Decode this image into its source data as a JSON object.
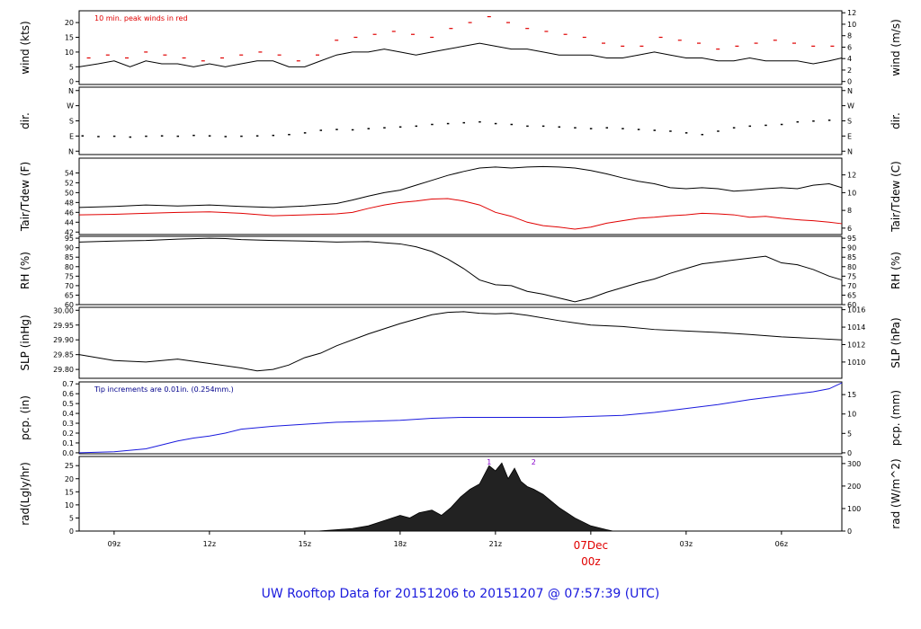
{
  "footer_title": "UW Rooftop Data for 20151206  to  20151207 @ 07:57:39  (UTC)",
  "colors": {
    "black": "#000000",
    "red": "#e00000",
    "blue": "#1a1add",
    "purple": "#8800cc",
    "note_blue": "#00008b"
  },
  "x_axis": {
    "ticks": [
      {
        "label": "09z",
        "t": 9
      },
      {
        "label": "12z",
        "t": 12
      },
      {
        "label": "15z",
        "t": 15
      },
      {
        "label": "18z",
        "t": 18
      },
      {
        "label": "21z",
        "t": 21
      },
      {
        "label": "03z",
        "t": 27
      },
      {
        "label": "06z",
        "t": 30
      }
    ],
    "date_label": "07Dec",
    "date_hour": "00z",
    "date_t": 24,
    "range": [
      7.9,
      31.9
    ]
  },
  "chart_data": [
    {
      "id": "wind",
      "type": "line",
      "ylabel_left": "wind (kts)",
      "ylabel_right": "wind (m/s)",
      "note": "10 min. peak winds in red",
      "ylim": [
        -1,
        24
      ],
      "yticks_left": [
        "0",
        "5",
        "10",
        "15",
        "20"
      ],
      "yticks_left_values": [
        0,
        5,
        10,
        15,
        20
      ],
      "yticks_right": [
        "0",
        "2",
        "4",
        "6",
        "8",
        "10",
        "12"
      ],
      "yticks_right_values": [
        0,
        3.89,
        7.78,
        11.66,
        15.55,
        19.44,
        23.33
      ],
      "series": [
        {
          "color": "black",
          "x": [
            7.9,
            8.5,
            9.0,
            9.5,
            10.0,
            10.5,
            11.0,
            11.5,
            12.0,
            12.5,
            13.0,
            13.5,
            14.0,
            14.5,
            15.0,
            15.5,
            16.0,
            16.5,
            17.0,
            17.5,
            18.0,
            18.5,
            19.0,
            19.5,
            20.0,
            20.5,
            21.0,
            21.5,
            22.0,
            22.5,
            23.0,
            23.5,
            24.0,
            24.5,
            25.0,
            25.5,
            26.0,
            26.5,
            27.0,
            27.5,
            28.0,
            28.5,
            29.0,
            29.5,
            30.0,
            30.5,
            31.0,
            31.5,
            31.9
          ],
          "y": [
            5,
            6,
            7,
            5,
            7,
            6,
            6,
            5,
            6,
            5,
            6,
            7,
            7,
            5,
            5,
            7,
            9,
            10,
            10,
            11,
            10,
            9,
            10,
            11,
            12,
            13,
            12,
            11,
            11,
            10,
            9,
            9,
            9,
            8,
            8,
            9,
            10,
            9,
            8,
            8,
            7,
            7,
            8,
            7,
            7,
            7,
            6,
            7,
            8
          ]
        },
        {
          "name": "10 min. peak winds",
          "color": "red",
          "style": "dash",
          "x": [
            8.2,
            8.8,
            9.4,
            10.0,
            10.6,
            11.2,
            11.8,
            12.4,
            13.0,
            13.6,
            14.2,
            14.8,
            15.4,
            16.0,
            16.6,
            17.2,
            17.8,
            18.4,
            19.0,
            19.6,
            20.2,
            20.8,
            21.4,
            22.0,
            22.6,
            23.2,
            23.8,
            24.4,
            25.0,
            25.6,
            26.2,
            26.8,
            27.4,
            28.0,
            28.6,
            29.2,
            29.8,
            30.4,
            31.0,
            31.6
          ],
          "y": [
            8,
            9,
            8,
            10,
            9,
            8,
            7,
            8,
            9,
            10,
            9,
            7,
            9,
            14,
            15,
            16,
            17,
            16,
            15,
            18,
            20,
            22,
            20,
            18,
            17,
            16,
            15,
            13,
            12,
            12,
            15,
            14,
            13,
            11,
            12,
            13,
            14,
            13,
            12,
            12
          ]
        }
      ]
    },
    {
      "id": "dir",
      "type": "scatter",
      "ylabel_left": "dir.",
      "ylabel_right": "dir.",
      "ylim": [
        -20,
        380
      ],
      "yticks_left": [
        "N",
        "E",
        "S",
        "W",
        "N"
      ],
      "yticks_left_values": [
        0,
        90,
        180,
        270,
        360
      ],
      "yticks_right": [
        "N",
        "E",
        "S",
        "W",
        "N"
      ],
      "yticks_right_values": [
        0,
        90,
        180,
        270,
        360
      ],
      "series": [
        {
          "color": "black",
          "x": [
            8.0,
            8.5,
            9.0,
            9.5,
            10.0,
            10.5,
            11.0,
            11.5,
            12.0,
            12.5,
            13.0,
            13.5,
            14.0,
            14.5,
            15.0,
            15.5,
            16.0,
            16.5,
            17.0,
            17.5,
            18.0,
            18.5,
            19.0,
            19.5,
            20.0,
            20.5,
            21.0,
            21.5,
            22.0,
            22.5,
            23.0,
            23.5,
            24.0,
            24.5,
            25.0,
            25.5,
            26.0,
            26.5,
            27.0,
            27.5,
            28.0,
            28.5,
            29.0,
            29.5,
            30.0,
            30.5,
            31.0,
            31.5
          ],
          "y": [
            92,
            88,
            90,
            85,
            90,
            92,
            90,
            95,
            92,
            88,
            90,
            92,
            95,
            100,
            110,
            125,
            130,
            128,
            135,
            140,
            145,
            150,
            160,
            165,
            170,
            175,
            165,
            160,
            150,
            150,
            145,
            140,
            135,
            140,
            135,
            130,
            125,
            120,
            110,
            100,
            120,
            140,
            150,
            155,
            160,
            175,
            180,
            185
          ]
        }
      ]
    },
    {
      "id": "temp",
      "type": "line",
      "ylabel_left": "Tair/Tdew (F)",
      "ylabel_right": "Tair/Tdew (C)",
      "ylim": [
        41.5,
        57
      ],
      "yticks_left": [
        "42",
        "44",
        "46",
        "48",
        "50",
        "52",
        "54"
      ],
      "yticks_left_values": [
        42,
        44,
        46,
        48,
        50,
        52,
        54
      ],
      "yticks_right": [
        "6",
        "8",
        "10",
        "12"
      ],
      "yticks_right_values": [
        42.8,
        46.4,
        50.0,
        53.6
      ],
      "series": [
        {
          "color": "black",
          "x": [
            7.9,
            9.0,
            10.0,
            11.0,
            12.0,
            13.0,
            14.0,
            15.0,
            16.0,
            16.5,
            17.0,
            17.5,
            18.0,
            18.5,
            19.0,
            19.5,
            20.0,
            20.5,
            21.0,
            21.5,
            22.0,
            22.5,
            23.0,
            23.5,
            24.0,
            24.5,
            25.0,
            25.5,
            26.0,
            26.5,
            27.0,
            27.5,
            28.0,
            28.5,
            29.0,
            29.5,
            30.0,
            30.5,
            31.0,
            31.5,
            31.9
          ],
          "y": [
            47,
            47.2,
            47.5,
            47.3,
            47.5,
            47.2,
            47,
            47.3,
            47.8,
            48.5,
            49.3,
            50,
            50.5,
            51.5,
            52.5,
            53.5,
            54.3,
            55,
            55.2,
            55,
            55.2,
            55.3,
            55.2,
            55,
            54.5,
            53.8,
            53,
            52.3,
            51.8,
            51,
            50.8,
            51,
            50.8,
            50.3,
            50.5,
            50.8,
            51,
            50.8,
            51.5,
            51.8,
            51
          ]
        },
        {
          "color": "red",
          "x": [
            7.9,
            9.0,
            10.0,
            11.0,
            12.0,
            13.0,
            14.0,
            15.0,
            16.0,
            16.5,
            17.0,
            17.5,
            18.0,
            18.5,
            19.0,
            19.5,
            20.0,
            20.5,
            21.0,
            21.5,
            22.0,
            22.5,
            23.0,
            23.5,
            24.0,
            24.5,
            25.0,
            25.5,
            26.0,
            26.5,
            27.0,
            27.5,
            28.0,
            28.5,
            29.0,
            29.5,
            30.0,
            30.5,
            31.0,
            31.5,
            31.9
          ],
          "y": [
            45.5,
            45.6,
            45.8,
            46,
            46.1,
            45.8,
            45.3,
            45.5,
            45.7,
            46,
            46.8,
            47.5,
            48,
            48.3,
            48.7,
            48.8,
            48.3,
            47.5,
            46,
            45.2,
            44,
            43.3,
            43,
            42.6,
            43,
            43.8,
            44.3,
            44.8,
            45,
            45.3,
            45.5,
            45.8,
            45.7,
            45.5,
            45,
            45.2,
            44.8,
            44.5,
            44.3,
            44,
            43.7
          ]
        }
      ]
    },
    {
      "id": "rh",
      "type": "line",
      "ylabel_left": "RH (%)",
      "ylabel_right": "RH (%)",
      "ylim": [
        60,
        96
      ],
      "yticks_left": [
        "60",
        "65",
        "70",
        "75",
        "80",
        "85",
        "90",
        "95"
      ],
      "yticks_left_values": [
        60,
        65,
        70,
        75,
        80,
        85,
        90,
        95
      ],
      "yticks_right": [
        "60",
        "65",
        "70",
        "75",
        "80",
        "85",
        "90",
        "95"
      ],
      "yticks_right_values": [
        60,
        65,
        70,
        75,
        80,
        85,
        90,
        95
      ],
      "series": [
        {
          "color": "black",
          "x": [
            7.9,
            9.0,
            10.0,
            11.0,
            12.0,
            12.5,
            13.0,
            14.0,
            15.0,
            16.0,
            17.0,
            18.0,
            18.5,
            19.0,
            19.5,
            20.0,
            20.5,
            21.0,
            21.5,
            22.0,
            22.5,
            23.0,
            23.5,
            24.0,
            24.5,
            25.0,
            25.5,
            26.0,
            26.5,
            27.0,
            27.5,
            28.0,
            28.5,
            29.0,
            29.5,
            30.0,
            30.5,
            31.0,
            31.5,
            31.9
          ],
          "y": [
            93,
            93.5,
            93.8,
            94.5,
            95,
            94.8,
            94.3,
            93.8,
            93.5,
            93,
            93.2,
            92,
            90.5,
            88,
            84,
            79,
            73,
            70.5,
            70,
            67,
            65.5,
            63.5,
            61.5,
            63.5,
            66.5,
            69,
            71.5,
            73.5,
            76.5,
            79,
            81.5,
            82.5,
            83.5,
            84.5,
            85.5,
            82,
            81,
            78.5,
            75,
            73
          ]
        }
      ]
    },
    {
      "id": "slp",
      "type": "line",
      "ylabel_left": "SLP (inHg)",
      "ylabel_right": "SLP (hPa)",
      "ylim": [
        29.77,
        30.01
      ],
      "yticks_left": [
        "29.80",
        "29.85",
        "29.90",
        "29.95",
        "30.00"
      ],
      "yticks_left_values": [
        29.8,
        29.85,
        29.9,
        29.95,
        30.0
      ],
      "yticks_right": [
        "1010",
        "1012",
        "1014",
        "1016"
      ],
      "yticks_right_values": [
        29.825,
        29.884,
        29.943,
        30.002
      ],
      "series": [
        {
          "color": "black",
          "x": [
            7.9,
            9.0,
            10.0,
            11.0,
            12.0,
            13.0,
            13.5,
            14.0,
            14.5,
            15.0,
            15.5,
            16.0,
            17.0,
            18.0,
            19.0,
            19.5,
            20.0,
            20.5,
            21.0,
            21.5,
            22.0,
            23.0,
            24.0,
            25.0,
            26.0,
            27.0,
            28.0,
            29.0,
            30.0,
            31.0,
            31.9
          ],
          "y": [
            29.85,
            29.83,
            29.825,
            29.835,
            29.82,
            29.805,
            29.795,
            29.8,
            29.815,
            29.84,
            29.855,
            29.88,
            29.92,
            29.955,
            29.985,
            29.993,
            29.995,
            29.99,
            29.988,
            29.99,
            29.983,
            29.965,
            29.95,
            29.945,
            29.935,
            29.93,
            29.925,
            29.918,
            29.91,
            29.905,
            29.9
          ]
        }
      ]
    },
    {
      "id": "pcp",
      "type": "line",
      "ylabel_left": "pcp. (in)",
      "ylabel_right": "pcp. (mm)",
      "note": "Tip increments are 0.01in. (0.254mm.)",
      "ylim": [
        -0.01,
        0.72
      ],
      "yticks_left": [
        "0.0",
        "0.1",
        "0.2",
        "0.3",
        "0.4",
        "0.5",
        "0.6",
        "0.7"
      ],
      "yticks_left_values": [
        0.0,
        0.1,
        0.2,
        0.3,
        0.4,
        0.5,
        0.6,
        0.7
      ],
      "yticks_right": [
        "0",
        "5",
        "10",
        "15"
      ],
      "yticks_right_values": [
        0,
        0.197,
        0.394,
        0.591
      ],
      "series": [
        {
          "color": "blue",
          "x": [
            7.9,
            9.0,
            10.0,
            10.5,
            11.0,
            11.5,
            12.0,
            12.5,
            13.0,
            14.0,
            15.0,
            16.0,
            17.0,
            18.0,
            19.0,
            20.0,
            21.0,
            22.0,
            23.0,
            24.0,
            25.0,
            26.0,
            27.0,
            28.0,
            29.0,
            30.0,
            31.0,
            31.5,
            31.9
          ],
          "y": [
            0,
            0.01,
            0.04,
            0.08,
            0.12,
            0.15,
            0.17,
            0.2,
            0.24,
            0.27,
            0.29,
            0.31,
            0.32,
            0.33,
            0.35,
            0.36,
            0.36,
            0.36,
            0.36,
            0.37,
            0.38,
            0.41,
            0.45,
            0.49,
            0.54,
            0.58,
            0.62,
            0.65,
            0.71
          ]
        }
      ]
    },
    {
      "id": "rad",
      "type": "area",
      "ylabel_left": "rad(Lgly/hr)",
      "ylabel_right": "rad (W/m^2)",
      "ylim": [
        0,
        28.5
      ],
      "yticks_left": [
        "0",
        "5",
        "10",
        "15",
        "20",
        "25"
      ],
      "yticks_left_values": [
        0,
        5,
        10,
        15,
        20,
        25
      ],
      "yticks_right": [
        "0",
        "100",
        "200",
        "300"
      ],
      "yticks_right_values": [
        0,
        8.6,
        17.2,
        25.8
      ],
      "peak_labels": [
        {
          "label": "1",
          "t": 20.8
        },
        {
          "label": "2",
          "t": 22.2
        }
      ],
      "series": [
        {
          "color": "black",
          "x": [
            15.4,
            16.0,
            16.5,
            17.0,
            17.5,
            18.0,
            18.3,
            18.6,
            19.0,
            19.3,
            19.6,
            19.9,
            20.2,
            20.5,
            20.8,
            21.0,
            21.2,
            21.4,
            21.6,
            21.8,
            22.0,
            22.2,
            22.5,
            23.0,
            23.5,
            24.0,
            24.5,
            24.7
          ],
          "y": [
            0,
            0.5,
            1,
            2,
            4,
            6,
            5,
            7,
            8,
            6,
            9,
            13,
            16,
            18,
            25,
            23,
            26,
            20,
            24,
            19,
            17,
            16,
            14,
            9,
            5,
            2,
            0.5,
            0
          ]
        }
      ]
    }
  ]
}
